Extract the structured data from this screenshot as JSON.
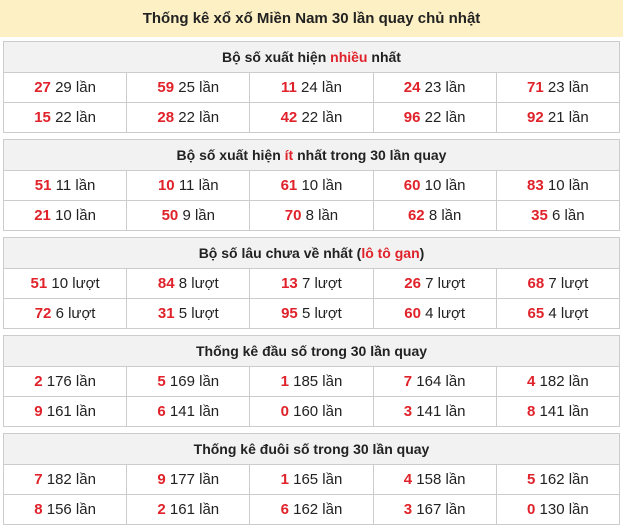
{
  "title": "Thống kê xổ xố Miền Nam 30 lần quay chủ nhật",
  "accent_color": "#e0222a",
  "sections": [
    {
      "title_pre": "Bộ số xuất hiện ",
      "title_hl": "nhiều",
      "title_post": " nhất",
      "rows": [
        [
          [
            "27",
            "29 lần"
          ],
          [
            "59",
            "25 lần"
          ],
          [
            "11",
            "24 lần"
          ],
          [
            "24",
            "23 lần"
          ],
          [
            "71",
            "23 lần"
          ]
        ],
        [
          [
            "15",
            "22 lần"
          ],
          [
            "28",
            "22 lần"
          ],
          [
            "42",
            "22 lần"
          ],
          [
            "96",
            "22 lần"
          ],
          [
            "92",
            "21 lần"
          ]
        ]
      ]
    },
    {
      "title_pre": "Bộ số xuất hiện ",
      "title_hl": "ít",
      "title_post": " nhất trong 30 lần quay",
      "rows": [
        [
          [
            "51",
            "11 lần"
          ],
          [
            "10",
            "11 lần"
          ],
          [
            "61",
            "10 lần"
          ],
          [
            "60",
            "10 lần"
          ],
          [
            "83",
            "10 lần"
          ]
        ],
        [
          [
            "21",
            "10 lần"
          ],
          [
            "50",
            "9 lần"
          ],
          [
            "70",
            "8 lần"
          ],
          [
            "62",
            "8 lần"
          ],
          [
            "35",
            "6 lần"
          ]
        ]
      ]
    },
    {
      "title_pre": "Bộ số lâu chưa về nhất (",
      "title_hl": "lô tô gan",
      "title_post": ")",
      "rows": [
        [
          [
            "51",
            "10 lượt"
          ],
          [
            "84",
            "8 lượt"
          ],
          [
            "13",
            "7 lượt"
          ],
          [
            "26",
            "7 lượt"
          ],
          [
            "68",
            "7 lượt"
          ]
        ],
        [
          [
            "72",
            "6 lượt"
          ],
          [
            "31",
            "5 lượt"
          ],
          [
            "95",
            "5 lượt"
          ],
          [
            "60",
            "4 lượt"
          ],
          [
            "65",
            "4 lượt"
          ]
        ]
      ]
    },
    {
      "title_pre": "Thống kê đầu số trong 30 lần quay",
      "title_hl": "",
      "title_post": "",
      "rows": [
        [
          [
            "2",
            "176 lần"
          ],
          [
            "5",
            "169 lần"
          ],
          [
            "1",
            "185 lần"
          ],
          [
            "7",
            "164 lần"
          ],
          [
            "4",
            "182 lần"
          ]
        ],
        [
          [
            "9",
            "161 lần"
          ],
          [
            "6",
            "141 lần"
          ],
          [
            "0",
            "160 lần"
          ],
          [
            "3",
            "141 lần"
          ],
          [
            "8",
            "141 lần"
          ]
        ]
      ]
    },
    {
      "title_pre": "Thống kê đuôi số trong 30 lần quay",
      "title_hl": "",
      "title_post": "",
      "rows": [
        [
          [
            "7",
            "182 lần"
          ],
          [
            "9",
            "177 lần"
          ],
          [
            "1",
            "165 lần"
          ],
          [
            "4",
            "158 lần"
          ],
          [
            "5",
            "162 lần"
          ]
        ],
        [
          [
            "8",
            "156 lần"
          ],
          [
            "2",
            "161 lần"
          ],
          [
            "6",
            "162 lần"
          ],
          [
            "3",
            "167 lần"
          ],
          [
            "0",
            "130 lần"
          ]
        ]
      ]
    }
  ]
}
